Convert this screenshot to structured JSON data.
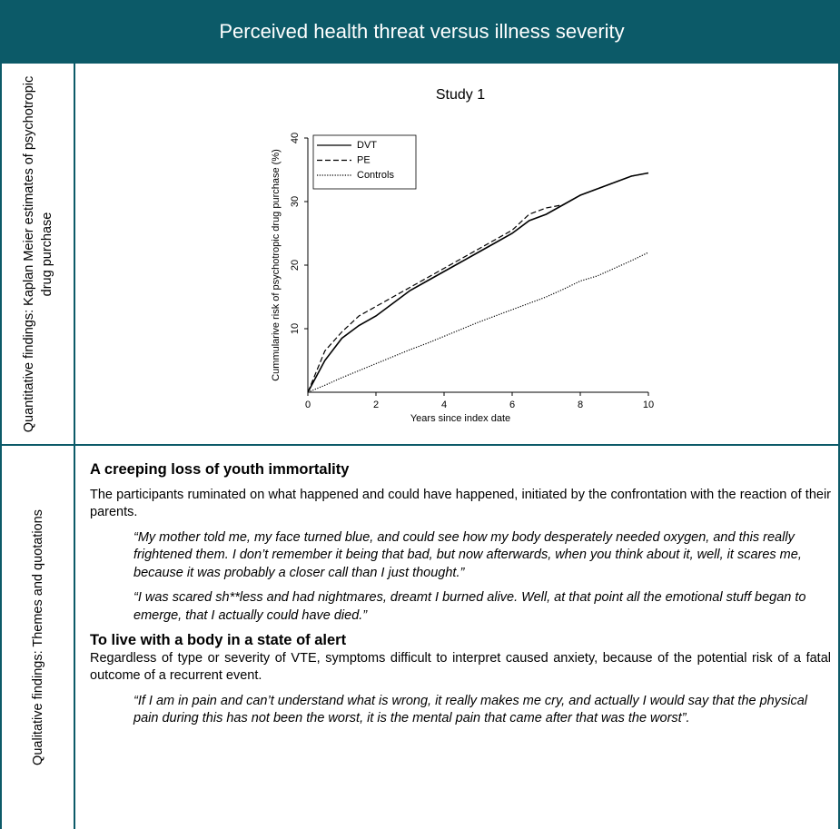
{
  "header": {
    "title": "Perceived health threat versus illness severity"
  },
  "rows": [
    {
      "label": "Quantitative findings: Kaplan Meier estimates of psychotropic drug purchase"
    },
    {
      "label": "Qualitative findings: Themes and quotations"
    }
  ],
  "chart_data": {
    "type": "line",
    "title": "Study 1",
    "x_label": "Years since index date",
    "y_label": "Cummularive risk of psychotropic drug purchase (%)",
    "x": [
      0,
      0.5,
      1,
      1.5,
      2,
      2.5,
      3,
      3.5,
      4,
      4.5,
      5,
      5.5,
      6,
      6.5,
      7,
      7.5,
      8,
      8.5,
      9,
      9.5,
      10
    ],
    "series": [
      {
        "name": "DVT",
        "color": "#000000",
        "line_style": "solid",
        "values": [
          0,
          5,
          8.5,
          10.5,
          12,
          14,
          16,
          17.5,
          19,
          20.5,
          22,
          23.5,
          25,
          27,
          28,
          29.5,
          31,
          32,
          33,
          34,
          34.5
        ]
      },
      {
        "name": "PE",
        "color": "#000000",
        "line_style": "dashed",
        "values": [
          0,
          6.5,
          9.5,
          12,
          13.5,
          15,
          16.5,
          18,
          19.5,
          21,
          22.5,
          24,
          25.5,
          28,
          29,
          29.5,
          31,
          32,
          33,
          34,
          34.5
        ]
      },
      {
        "name": "Controls",
        "color": "#000000",
        "line_style": "dotted",
        "values": [
          0,
          1.1,
          2.3,
          3.4,
          4.5,
          5.6,
          6.7,
          7.7,
          8.8,
          9.9,
          11,
          12,
          13,
          14,
          15,
          16.2,
          17.5,
          18.3,
          19.5,
          20.7,
          22
        ]
      }
    ],
    "xlim": [
      0,
      10
    ],
    "xticks": [
      0,
      2,
      4,
      6,
      8,
      10
    ],
    "ylim": [
      0,
      40
    ],
    "yticks": [
      10,
      20,
      30,
      40
    ],
    "legend": "top-left",
    "grid": false
  },
  "themes": [
    {
      "title": "A creeping loss of youth immortality",
      "text": "The participants ruminated on what happened and could have happened, initiated by the confrontation with the reaction of their parents.",
      "quotes": [
        "“My mother told me, my face turned blue, and could see how my body desperately needed oxygen, and this really frightened them. I don’t remember it being that bad, but now afterwards, when you think about it, well, it scares me, because it was probably a closer call than I just thought.”",
        "“I was scared sh**less and had nightmares, dreamt I burned alive. Well, at that point all the emotional stuff began to emerge, that I actually could have died.”"
      ]
    },
    {
      "title": "To live with a body in a state of alert",
      "text": "Regardless of type or severity of VTE, symptoms difficult to interpret caused anxiety, because of the potential risk of a fatal outcome of a recurrent event.",
      "quotes": [
        "“If I am in pain and can’t understand what is wrong, it really makes me cry, and actually I would say that the physical pain during this has not been the worst, it is the mental pain that came after that was the worst”."
      ]
    }
  ]
}
